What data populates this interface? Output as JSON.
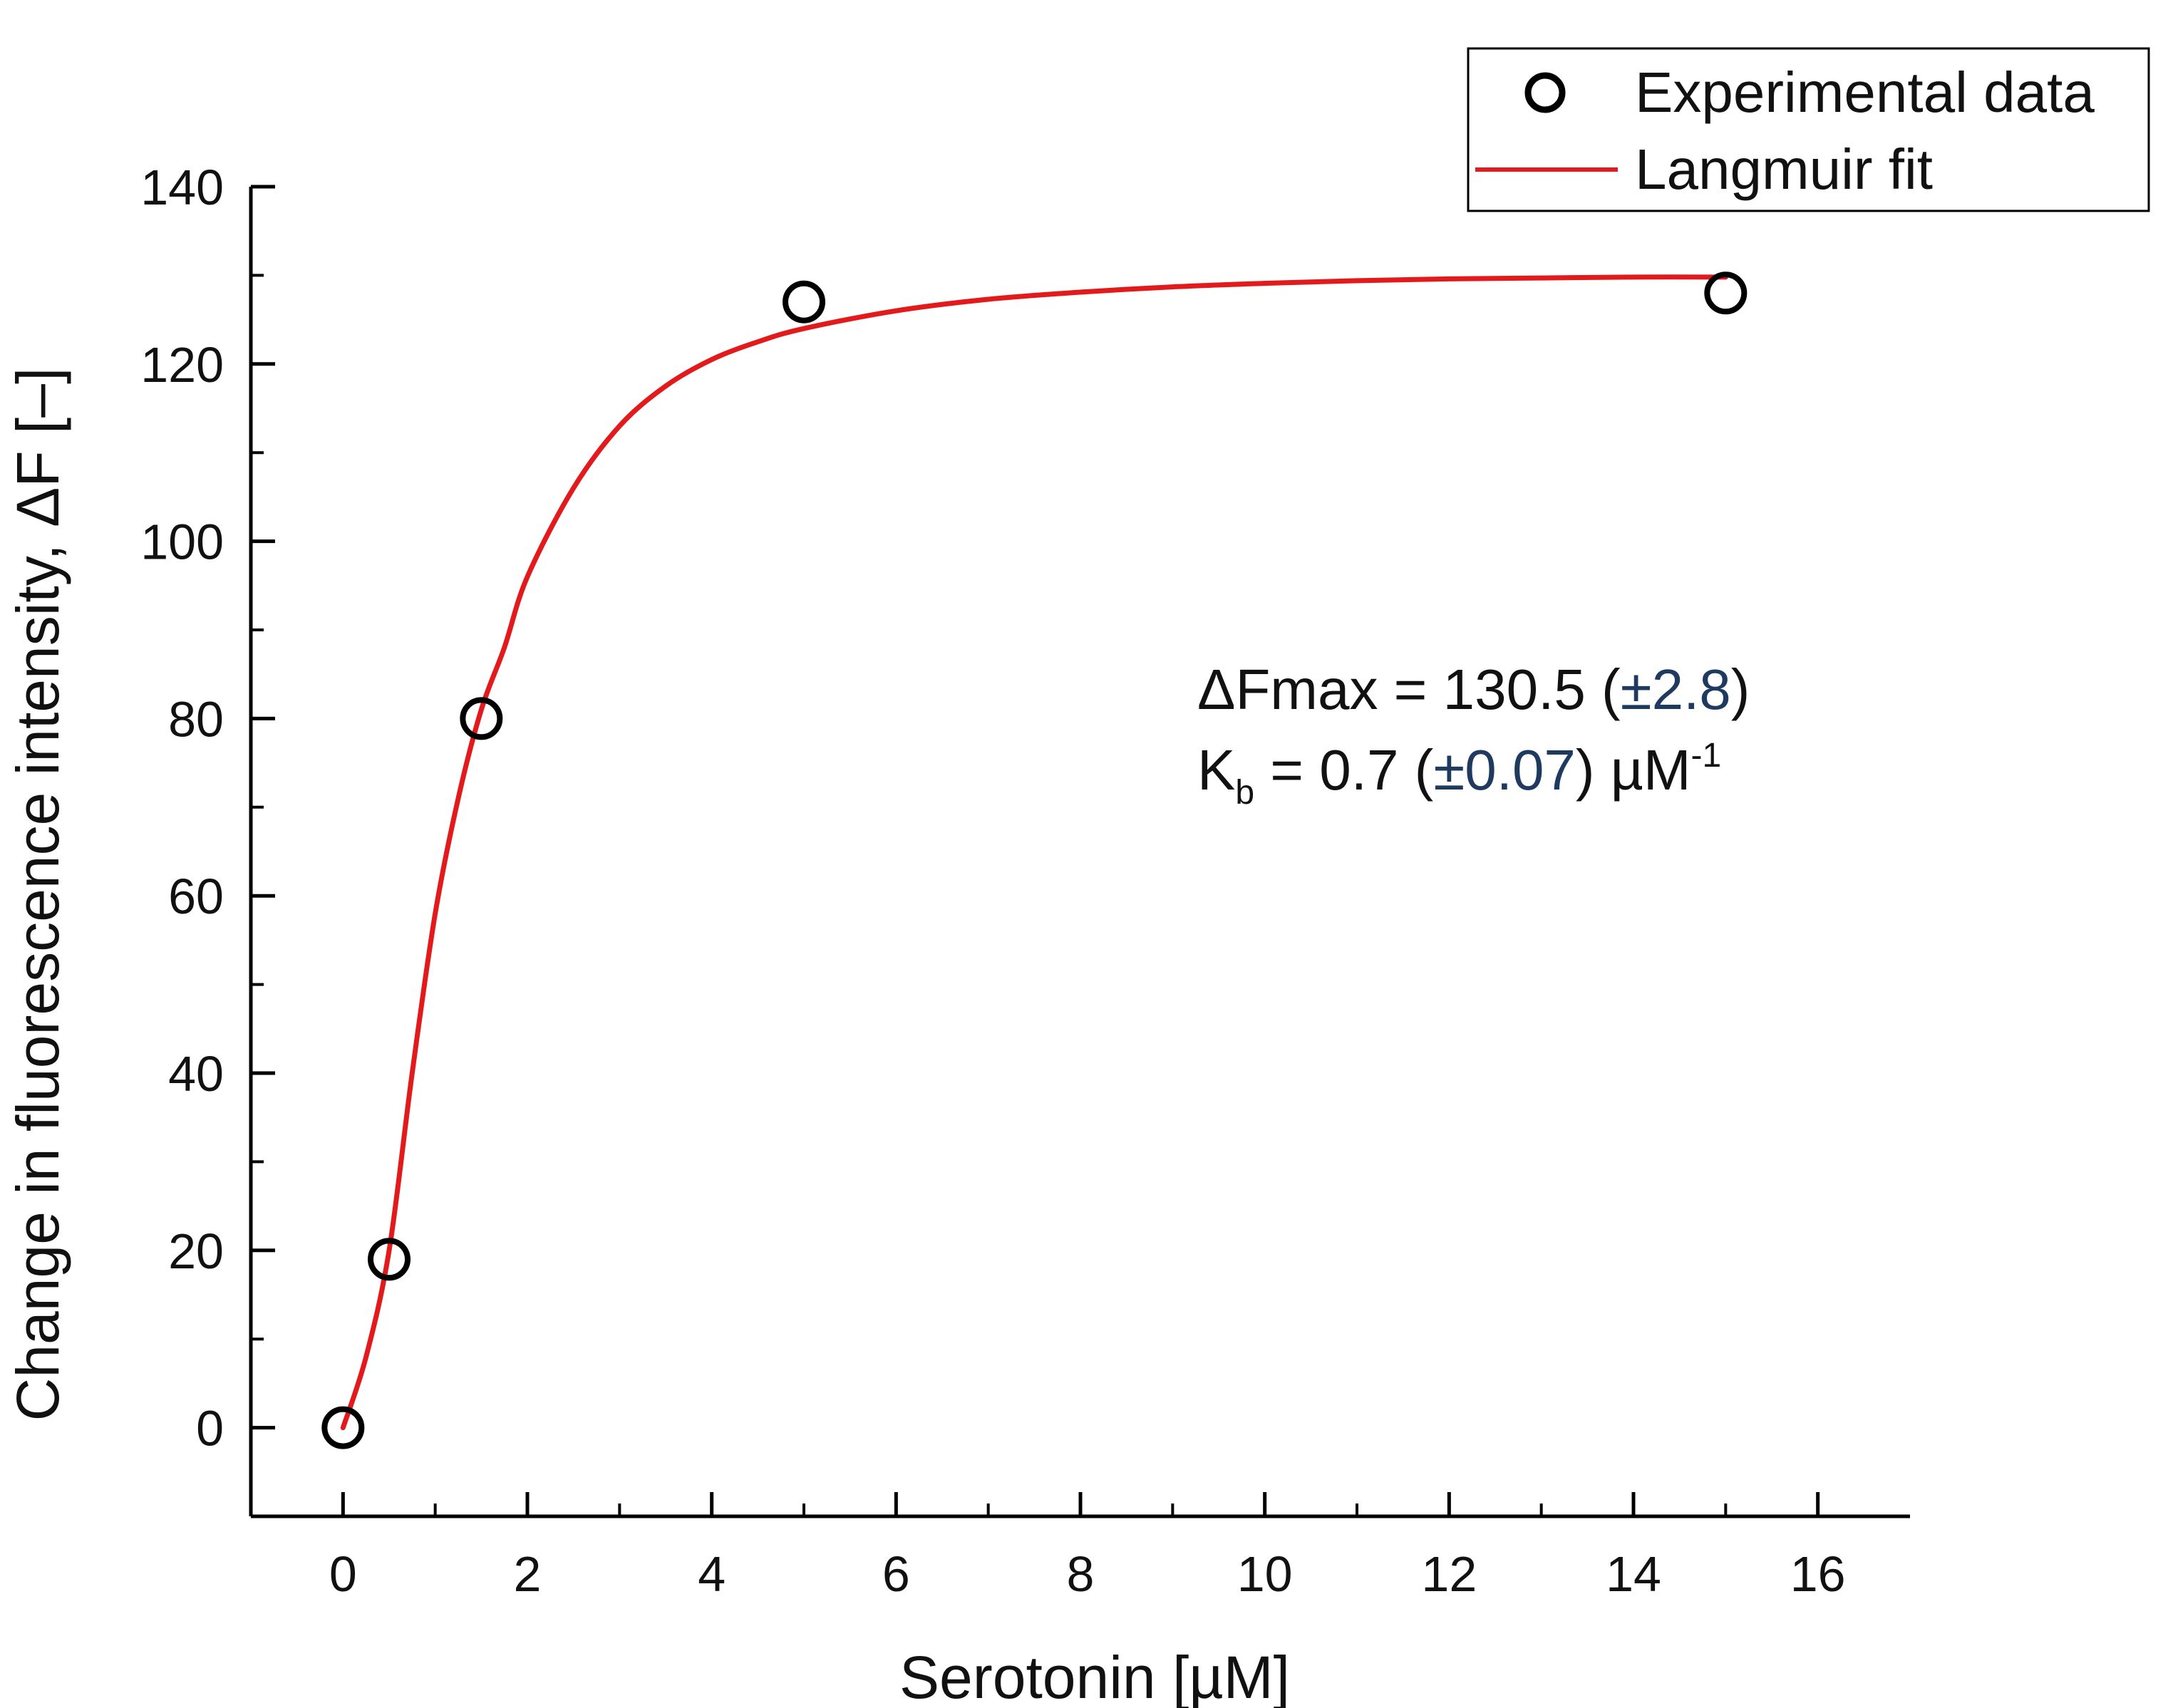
{
  "chart_data": {
    "type": "scatter",
    "title": "",
    "xlabel": "Serotonin [µM]",
    "ylabel": "Change in fluorescence intensity, ΔF [–]",
    "xlim": [
      -1,
      17
    ],
    "ylim": [
      -10,
      140
    ],
    "x_ticks": [
      0,
      2,
      4,
      6,
      8,
      10,
      12,
      14,
      16
    ],
    "y_ticks": [
      0,
      20,
      40,
      60,
      80,
      100,
      120,
      140
    ],
    "x_tick_labels": [
      "0",
      "2",
      "4",
      "6",
      "8",
      "10",
      "12",
      "14",
      "16"
    ],
    "y_tick_labels": [
      "0",
      "20",
      "40",
      "60",
      "80",
      "100",
      "120",
      "140"
    ],
    "legend_position": "top-right",
    "series": [
      {
        "name": "Experimental data",
        "kind": "scatter",
        "marker": "open-circle",
        "color": "#000000",
        "x": [
          0,
          0.5,
          1.5,
          5,
          15
        ],
        "y": [
          0,
          19,
          80,
          127,
          128
        ]
      },
      {
        "name": "Langmuir fit",
        "kind": "line",
        "color": "#e31a1c",
        "x": [
          0,
          0.25,
          0.5,
          0.75,
          1,
          1.25,
          1.5,
          1.75,
          2,
          2.5,
          3,
          3.5,
          4,
          4.5,
          5,
          6,
          7,
          8,
          9,
          10,
          11,
          12,
          13,
          14,
          15
        ],
        "y": [
          0,
          8,
          20,
          40,
          58,
          71,
          81,
          88,
          96,
          106,
          113,
          117.5,
          120.5,
          122.5,
          124,
          126,
          127.3,
          128.1,
          128.7,
          129.1,
          129.4,
          129.6,
          129.7,
          129.8,
          129.8
        ]
      }
    ],
    "annotations": {
      "line1": "ΔFmax = 130.5 (",
      "line1_err": "±2.8",
      "line1_close": ")",
      "line2_k": "K",
      "line2_sub": "b",
      "line2_mid": " = 0.7 (",
      "line2_err": "±0.07",
      "line2_close": ") µM",
      "line2_sup": "-1"
    }
  }
}
